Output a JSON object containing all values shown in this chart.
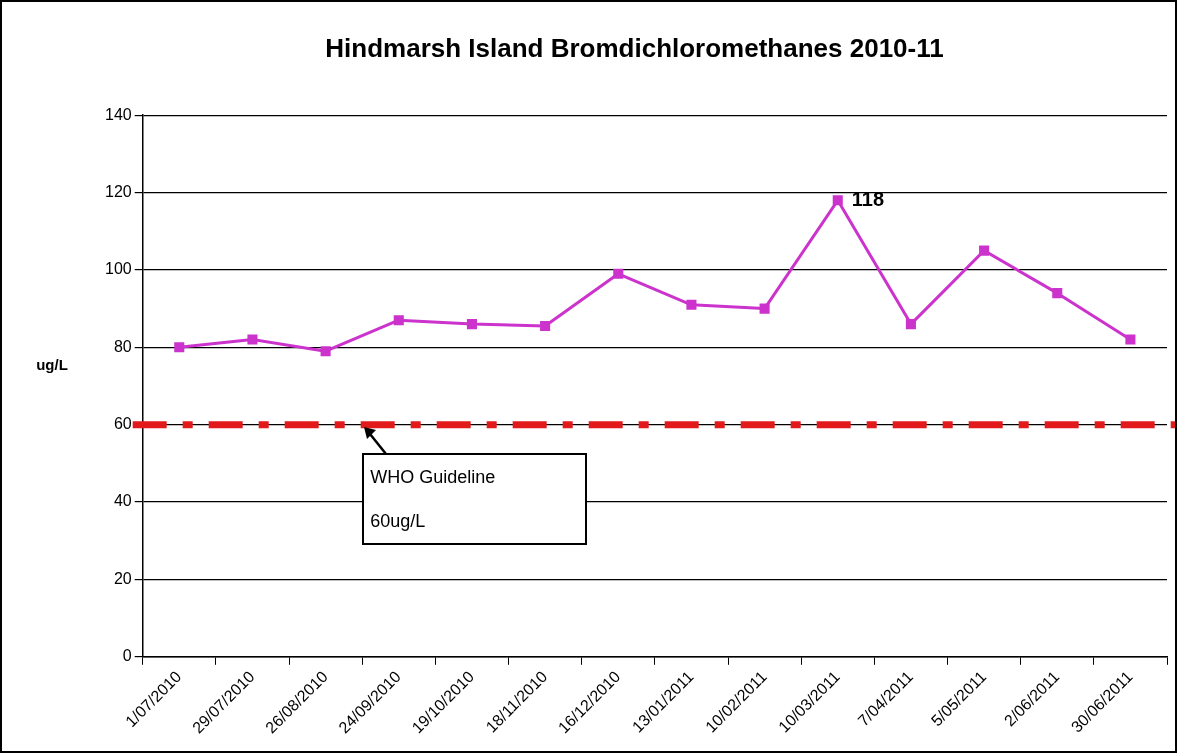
{
  "chart_data": {
    "type": "line",
    "title": "Hindmarsh Island Bromdichloromethanes 2010-11",
    "ylabel": "ug/L",
    "categories": [
      "1/07/2010",
      "29/07/2010",
      "26/08/2010",
      "24/09/2010",
      "19/10/2010",
      "18/11/2010",
      "16/12/2010",
      "13/01/2011",
      "10/02/2011",
      "10/03/2011",
      "7/04/2011",
      "5/05/2011",
      "2/06/2011",
      "30/06/2011"
    ],
    "series": [
      {
        "color": "#cc33cc",
        "values": [
          80,
          82,
          79,
          87,
          86,
          85.5,
          99,
          91,
          90,
          118,
          86,
          105,
          94,
          82
        ],
        "value_labels": [
          null,
          null,
          null,
          null,
          null,
          null,
          null,
          null,
          null,
          "118",
          null,
          null,
          null,
          null
        ]
      }
    ],
    "ylim": [
      0,
      140
    ],
    "yticks": [
      0,
      20,
      40,
      60,
      80,
      100,
      120,
      140
    ],
    "grid": "y",
    "legend": false,
    "marker": "square",
    "line_style": "solid",
    "ref_lines": [
      {
        "axis": "y",
        "value": 60,
        "label": "WHO Guideline\n60ug/L",
        "color": "#e31a1c",
        "line_style": "dashed"
      }
    ]
  }
}
